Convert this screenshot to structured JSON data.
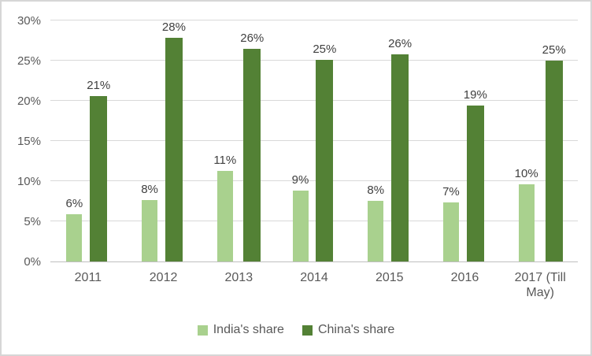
{
  "chart_data": {
    "type": "bar",
    "title": "",
    "xlabel": "",
    "ylabel": "",
    "categories": [
      "2011",
      "2012",
      "2013",
      "2014",
      "2015",
      "2016",
      "2017 (Till May)"
    ],
    "series": [
      {
        "name": "India's share",
        "color": "#A9D18E",
        "values": [
          5.9,
          7.7,
          11.3,
          8.8,
          7.6,
          7.4,
          9.6
        ],
        "labels": [
          "6%",
          "8%",
          "11%",
          "9%",
          "8%",
          "7%",
          "10%"
        ]
      },
      {
        "name": "China's share",
        "color": "#538135",
        "values": [
          20.6,
          27.8,
          26.5,
          25.1,
          25.8,
          19.4,
          25.0
        ],
        "labels": [
          "21%",
          "28%",
          "26%",
          "25%",
          "26%",
          "19%",
          "25%"
        ]
      }
    ],
    "ylim": [
      0,
      30
    ],
    "y_ticks": [
      "0%",
      "5%",
      "10%",
      "15%",
      "20%",
      "25%",
      "30%"
    ],
    "grid": true,
    "legend_position": "bottom"
  },
  "style_colors": {
    "axis_text": "#595959",
    "data_label": "#404040",
    "gridline": "#D9D9D9",
    "axis_line": "#BFBFBF",
    "frame_border": "#D6D6D6",
    "background": "#FFFFFF"
  }
}
